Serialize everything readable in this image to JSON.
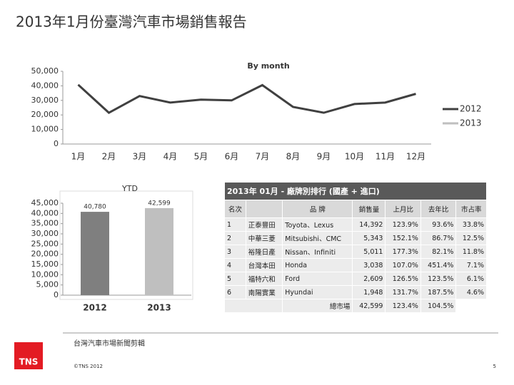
{
  "header": {
    "title": "2013年1月份臺灣汽車市場銷售報告"
  },
  "chart_data": [
    {
      "type": "line",
      "title": "By month",
      "categories": [
        "1月",
        "2月",
        "3月",
        "4月",
        "5月",
        "6月",
        "7月",
        "8月",
        "9月",
        "10月",
        "11月",
        "12月"
      ],
      "series": [
        {
          "name": "2012",
          "color": "#404040",
          "values": [
            40780,
            21500,
            33000,
            28500,
            30500,
            30000,
            40500,
            25500,
            21500,
            27500,
            28500,
            34500
          ]
        },
        {
          "name": "2013",
          "color": "#bfbfbf",
          "values": [
            null,
            null,
            null,
            null,
            null,
            null,
            null,
            null,
            null,
            null,
            null,
            null
          ]
        }
      ],
      "ylim": [
        0,
        50000
      ],
      "yticks": [
        0,
        {
          "value": 10000,
          "label": "10,000"
        },
        {
          "value": 20000,
          "label": "20,000"
        },
        {
          "value": 30000,
          "label": "30,000"
        },
        {
          "value": 40000,
          "label": "40,000"
        },
        {
          "value": 50000,
          "label": "50,000"
        }
      ],
      "legend": "right"
    },
    {
      "type": "bar",
      "title": "YTD",
      "categories": [
        "2012",
        "2013"
      ],
      "values": [
        40780,
        42599
      ],
      "value_labels": [
        "40,780",
        "42,599"
      ],
      "colors": [
        "#7f7f7f",
        "#bfbfbf"
      ],
      "ylim": [
        0,
        45000
      ],
      "yticks": [
        0,
        {
          "value": 5000,
          "label": "5,000"
        },
        {
          "value": 10000,
          "label": "10,000"
        },
        {
          "value": 15000,
          "label": "15,000"
        },
        {
          "value": 20000,
          "label": "20,000"
        },
        {
          "value": 25000,
          "label": "25,000"
        },
        {
          "value": 30000,
          "label": "30,000"
        },
        {
          "value": 35000,
          "label": "35,000"
        },
        {
          "value": 40000,
          "label": "40,000"
        },
        {
          "value": 45000,
          "label": "45,000"
        }
      ]
    }
  ],
  "table": {
    "title": "2013年 01月 - 廠牌別排行 (國產 + 進口)",
    "header": [
      "名次",
      "品 牌",
      "銷售量",
      "上月比",
      "去年比",
      "市占率"
    ],
    "rows": [
      [
        "1",
        "正泰豐田",
        "Toyota、Lexus",
        "14,392",
        "123.9%",
        "93.6%",
        "33.8%"
      ],
      [
        "2",
        "中華三菱",
        "Mitsubishi、CMC",
        "5,343",
        "152.1%",
        "86.7%",
        "12.5%"
      ],
      [
        "3",
        "裕隆日產",
        "Nissan、Infiniti",
        "5,011",
        "177.3%",
        "82.1%",
        "11.8%"
      ],
      [
        "4",
        "台灣本田",
        "Honda",
        "3,038",
        "107.0%",
        "451.4%",
        "7.1%"
      ],
      [
        "5",
        "福特六和",
        "Ford",
        "2,609",
        "126.5%",
        "123.5%",
        "6.1%"
      ],
      [
        "6",
        "南陽實業",
        "Hyundai",
        "1,948",
        "131.7%",
        "187.5%",
        "4.6%"
      ]
    ],
    "total": [
      "總市場",
      "42,599",
      "123.4%",
      "104.5%"
    ]
  },
  "footer": {
    "source": "台灣汽車市場新聞剪輯",
    "logo": "TNS",
    "copyright": "©TNS 2012",
    "page": "5"
  }
}
